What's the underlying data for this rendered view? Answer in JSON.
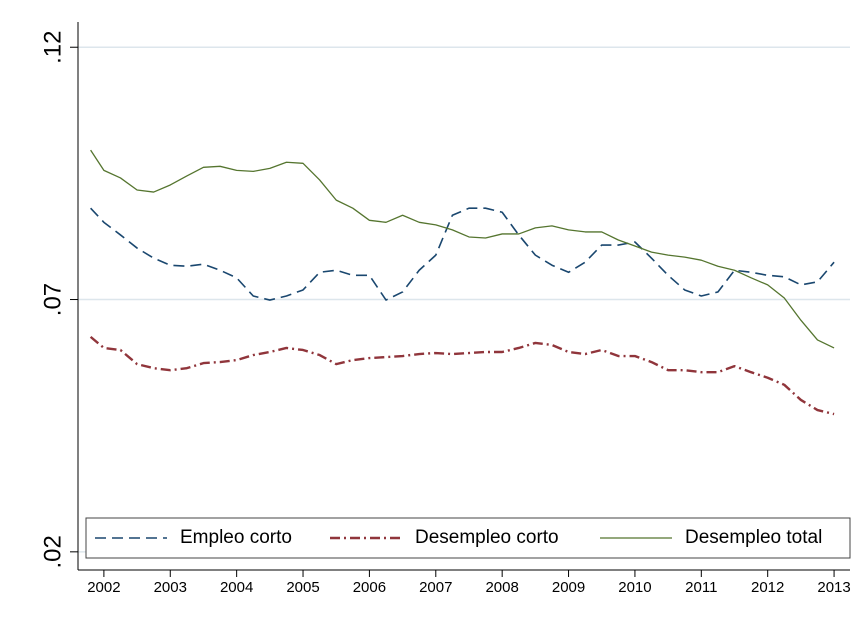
{
  "chart_data": {
    "type": "line",
    "x": [
      2001.8,
      2002,
      2002.25,
      2002.5,
      2002.75,
      2003,
      2003.25,
      2003.5,
      2003.75,
      2004,
      2004.25,
      2004.5,
      2004.75,
      2005,
      2005.25,
      2005.5,
      2005.75,
      2006,
      2006.25,
      2006.5,
      2006.75,
      2007,
      2007.25,
      2007.5,
      2007.75,
      2008,
      2008.25,
      2008.5,
      2008.75,
      2009,
      2009.25,
      2009.5,
      2009.75,
      2010,
      2010.25,
      2010.5,
      2010.75,
      2011,
      2011.25,
      2011.5,
      2011.75,
      2012,
      2012.25,
      2012.5,
      2012.75,
      2013
    ],
    "series": [
      {
        "name": "Empleo corto",
        "color": "#1a476f",
        "line_style": "dashed",
        "values": [
          0.0881,
          0.0853,
          0.0828,
          0.0802,
          0.0782,
          0.0768,
          0.0766,
          0.077,
          0.0758,
          0.0743,
          0.0707,
          0.0699,
          0.0707,
          0.0719,
          0.0754,
          0.0758,
          0.0748,
          0.0748,
          0.0699,
          0.0715,
          0.0758,
          0.0788,
          0.0867,
          0.0881,
          0.0881,
          0.0873,
          0.0828,
          0.0788,
          0.0768,
          0.0754,
          0.0774,
          0.0808,
          0.0808,
          0.0814,
          0.0782,
          0.0748,
          0.0719,
          0.0707,
          0.0715,
          0.0758,
          0.0754,
          0.0748,
          0.0745,
          0.0729,
          0.0735,
          0.0774
        ]
      },
      {
        "name": "Desempleo corto",
        "color": "#90353b",
        "line_style": "dashdot",
        "values": [
          0.0626,
          0.0604,
          0.06,
          0.0572,
          0.0564,
          0.056,
          0.0564,
          0.0574,
          0.0576,
          0.058,
          0.059,
          0.0596,
          0.0604,
          0.06,
          0.059,
          0.0572,
          0.058,
          0.0584,
          0.0586,
          0.0588,
          0.0592,
          0.0594,
          0.0592,
          0.0594,
          0.0596,
          0.0596,
          0.0604,
          0.0614,
          0.061,
          0.0596,
          0.0592,
          0.06,
          0.0588,
          0.0588,
          0.0576,
          0.056,
          0.056,
          0.0556,
          0.0556,
          0.0568,
          0.0556,
          0.0545,
          0.0531,
          0.0501,
          0.0481,
          0.0473
        ]
      },
      {
        "name": "Desempleo total",
        "color": "#55752f",
        "line_style": "solid",
        "values": [
          0.0996,
          0.0956,
          0.0941,
          0.0917,
          0.0913,
          0.0927,
          0.0945,
          0.0962,
          0.0964,
          0.0956,
          0.0954,
          0.096,
          0.0972,
          0.097,
          0.0937,
          0.0897,
          0.0881,
          0.0857,
          0.0853,
          0.0867,
          0.0853,
          0.0848,
          0.0838,
          0.0824,
          0.0822,
          0.083,
          0.083,
          0.0842,
          0.0846,
          0.0838,
          0.0834,
          0.0834,
          0.0818,
          0.0806,
          0.0794,
          0.0788,
          0.0784,
          0.0778,
          0.0766,
          0.0758,
          0.0743,
          0.0729,
          0.0703,
          0.0659,
          0.062,
          0.0604
        ]
      }
    ],
    "xlim": [
      2001.61,
      2013.24
    ],
    "xticks": [
      2002,
      2003,
      2004,
      2005,
      2006,
      2007,
      2008,
      2009,
      2010,
      2011,
      2012,
      2013
    ],
    "ylim": [
      0.0164,
      0.125
    ],
    "yticks": [
      {
        "value": 0.02,
        "label": ".02"
      },
      {
        "value": 0.07,
        "label": ".07"
      },
      {
        "value": 0.12,
        "label": ".12"
      }
    ],
    "grid": true,
    "legend": "bottom"
  }
}
